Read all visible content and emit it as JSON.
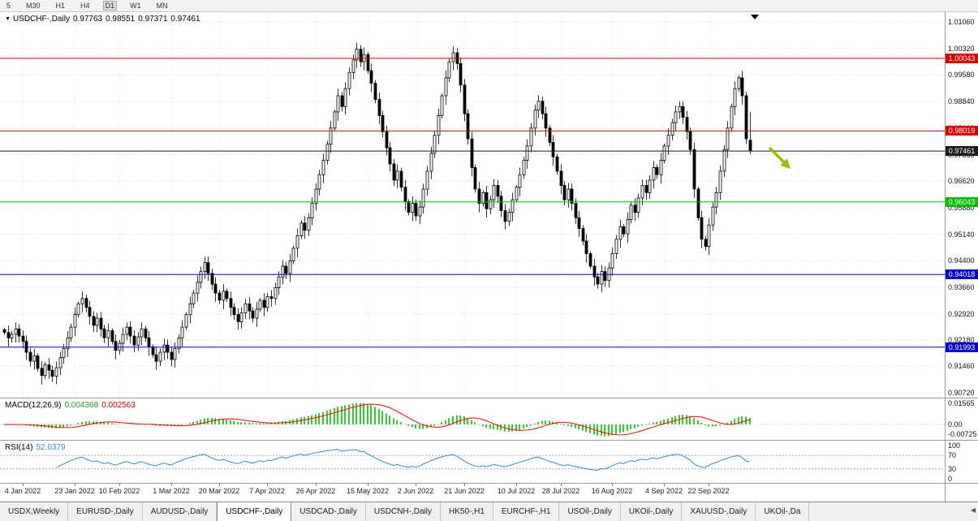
{
  "toolbar": {
    "periods": [
      "5",
      "M30",
      "H1",
      "H4",
      "D1",
      "W1",
      "MN"
    ],
    "active_period": "D1"
  },
  "header": {
    "symbol": "USDCHF-,Daily",
    "open": "0.97763",
    "high": "0.98551",
    "low": "0.97371",
    "close": "0.97461"
  },
  "macd_panel": {
    "title": "MACD(12,26,9)",
    "value_main": "0.004368",
    "value_signal": "0.002563"
  },
  "rsi_panel": {
    "title": "RSI(14)",
    "value": "52.0379"
  },
  "tabs": {
    "items": [
      {
        "label": "USDX,Weekly",
        "active": false
      },
      {
        "label": "EURUSD-,Daily",
        "active": false
      },
      {
        "label": "AUDUSD-,Daily",
        "active": false
      },
      {
        "label": "USDCHF-,Daily",
        "active": true
      },
      {
        "label": "USDCAD-,Daily",
        "active": false
      },
      {
        "label": "USDCNH-,Daily",
        "active": false
      },
      {
        "label": "HK50-,H1",
        "active": false
      },
      {
        "label": "EURCHF-,H1",
        "active": false
      },
      {
        "label": "USOil-,Daily",
        "active": false
      },
      {
        "label": "UKOil-,Daily",
        "active": false
      },
      {
        "label": "XAUUSD-,Daily",
        "active": false
      },
      {
        "label": "UKOil-,Da",
        "active": false
      }
    ],
    "scroll_left_icon": "◀"
  },
  "colors": {
    "up_candle": "#ffffff",
    "down_candle": "#000000",
    "candle_border": "#000000",
    "grid": "#d9d9d9",
    "vgrid": "#e7e7e7",
    "macd_hist": "#33cc33",
    "macd_signal": "#ff0000",
    "rsi_line": "#3a87d0",
    "resistance_red": "#e00000",
    "support_green": "#00c000",
    "support_blue": "#0000d0",
    "current_price_black": "#1a1a1a",
    "arrow_annotation": "#a6b800"
  },
  "chart_data": {
    "type": "candlestick",
    "title": "USDCHF-,Daily",
    "price_axis_ticks": [
      {
        "text": "1.01060",
        "value": 1.0106
      },
      {
        "text": "1.00320",
        "value": 1.0032
      },
      {
        "text": "0.99580",
        "value": 0.9958
      },
      {
        "text": "0.98840",
        "value": 0.9884
      },
      {
        "text": "0.98100",
        "value": 0.981
      },
      {
        "text": "0.97360",
        "value": 0.9736
      },
      {
        "text": "0.96620",
        "value": 0.9662
      },
      {
        "text": "0.95880",
        "value": 0.9588
      },
      {
        "text": "0.95140",
        "value": 0.9514
      },
      {
        "text": "0.94400",
        "value": 0.944
      },
      {
        "text": "0.93660",
        "value": 0.9366
      },
      {
        "text": "0.92920",
        "value": 0.9292
      },
      {
        "text": "0.92180",
        "value": 0.9218
      },
      {
        "text": "0.91460",
        "value": 0.9146
      },
      {
        "text": "0.90720",
        "value": 0.9072
      }
    ],
    "x_axis_ticks": [
      {
        "text": "4 Jan 2022",
        "index": 5
      },
      {
        "text": "23 Jan 2022",
        "index": 19
      },
      {
        "text": "10 Feb 2022",
        "index": 31
      },
      {
        "text": "1 Mar 2022",
        "index": 45
      },
      {
        "text": "20 Mar 2022",
        "index": 58
      },
      {
        "text": "7 Apr 2022",
        "index": 71
      },
      {
        "text": "26 Apr 2022",
        "index": 84
      },
      {
        "text": "15 May 2022",
        "index": 98
      },
      {
        "text": "2 Jun 2022",
        "index": 111
      },
      {
        "text": "21 Jun 2022",
        "index": 124
      },
      {
        "text": "10 Jul 2022",
        "index": 138
      },
      {
        "text": "28 Jul 2022",
        "index": 150
      },
      {
        "text": "16 Aug 2022",
        "index": 164
      },
      {
        "text": "4 Sep 2022",
        "index": 178
      },
      {
        "text": "22 Sep 2022",
        "index": 190
      }
    ],
    "closes": [
      0.924,
      0.9225,
      0.9235,
      0.925,
      0.923,
      0.9215,
      0.9185,
      0.916,
      0.9175,
      0.914,
      0.912,
      0.915,
      0.9135,
      0.9118,
      0.9142,
      0.917,
      0.9195,
      0.9225,
      0.9255,
      0.929,
      0.932,
      0.9335,
      0.931,
      0.9285,
      0.926,
      0.928,
      0.925,
      0.9225,
      0.9245,
      0.9215,
      0.919,
      0.921,
      0.9235,
      0.9255,
      0.923,
      0.9205,
      0.9228,
      0.925,
      0.9225,
      0.92,
      0.9178,
      0.916,
      0.9185,
      0.9205,
      0.9185,
      0.9165,
      0.9195,
      0.9225,
      0.9255,
      0.929,
      0.932,
      0.935,
      0.938,
      0.941,
      0.9435,
      0.9405,
      0.9375,
      0.935,
      0.933,
      0.9355,
      0.9335,
      0.931,
      0.929,
      0.927,
      0.9295,
      0.932,
      0.93,
      0.928,
      0.9305,
      0.933,
      0.931,
      0.934,
      0.9335,
      0.9365,
      0.9395,
      0.9425,
      0.9405,
      0.944,
      0.9475,
      0.951,
      0.9545,
      0.9525,
      0.956,
      0.96,
      0.964,
      0.968,
      0.972,
      0.9765,
      0.981,
      0.9855,
      0.99,
      0.987,
      0.992,
      0.9965,
      1.0,
      1.003,
      0.9995,
      1.0015,
      0.997,
      0.9935,
      0.989,
      0.9845,
      0.98,
      0.9755,
      0.971,
      0.9665,
      0.969,
      0.9645,
      0.9605,
      0.9575,
      0.96,
      0.9565,
      0.959,
      0.964,
      0.969,
      0.974,
      0.979,
      0.9845,
      0.99,
      0.995,
      0.9995,
      1.002,
      0.999,
      0.993,
      0.985,
      0.978,
      0.97,
      0.964,
      0.96,
      0.963,
      0.9585,
      0.961,
      0.965,
      0.962,
      0.958,
      0.955,
      0.9575,
      0.961,
      0.9645,
      0.968,
      0.972,
      0.976,
      0.981,
      0.986,
      0.9885,
      0.985,
      0.981,
      0.977,
      0.973,
      0.969,
      0.965,
      0.961,
      0.964,
      0.96,
      0.956,
      0.953,
      0.9495,
      0.946,
      0.9425,
      0.9395,
      0.9375,
      0.941,
      0.9385,
      0.942,
      0.946,
      0.95,
      0.9535,
      0.9515,
      0.9555,
      0.9595,
      0.9575,
      0.9615,
      0.965,
      0.963,
      0.9665,
      0.97,
      0.968,
      0.972,
      0.976,
      0.979,
      0.9825,
      0.9855,
      0.987,
      0.984,
      0.98,
      0.975,
      0.964,
      0.956,
      0.95,
      0.948,
      0.954,
      0.959,
      0.963,
      0.969,
      0.975,
      0.981,
      0.987,
      0.992,
      0.995,
      0.99,
      0.978,
      0.97461
    ],
    "last_candle": {
      "open": 0.97763,
      "high": 0.98551,
      "low": 0.97371,
      "close": 0.97461
    },
    "horizontal_lines": [
      {
        "price": 1.00043,
        "text": "1.00043",
        "color": "#e00000"
      },
      {
        "price": 0.98019,
        "text": "0.98019",
        "color": "#e00000"
      },
      {
        "price": 0.97461,
        "text": "0.97461",
        "color": "#1a1a1a"
      },
      {
        "price": 0.96043,
        "text": "0.96043",
        "color": "#00c000"
      },
      {
        "price": 0.94018,
        "text": "0.94018",
        "color": "#0000d0"
      },
      {
        "price": 0.91993,
        "text": "0.91993",
        "color": "#0000d0"
      }
    ],
    "indicators": {
      "macd": {
        "params": [
          12,
          26,
          9
        ],
        "display_main": "0.004368",
        "display_signal": "0.002563",
        "axis_ticks": [
          {
            "text": "0.01565",
            "value": 0.01565
          },
          {
            "text": "0.00",
            "value": 0
          },
          {
            "text": "-0.00725",
            "value": -0.00725
          }
        ]
      },
      "rsi": {
        "period": 14,
        "display_value": "52.0379",
        "levels": [
          70,
          30
        ],
        "axis_ticks": [
          {
            "text": "100",
            "value": 100
          },
          {
            "text": "70",
            "value": 70
          },
          {
            "text": "30",
            "value": 30
          },
          {
            "text": "0",
            "value": 0
          }
        ]
      }
    },
    "annotations": [
      {
        "type": "arrow",
        "direction": "down-right",
        "color": "#a6b800"
      }
    ]
  }
}
